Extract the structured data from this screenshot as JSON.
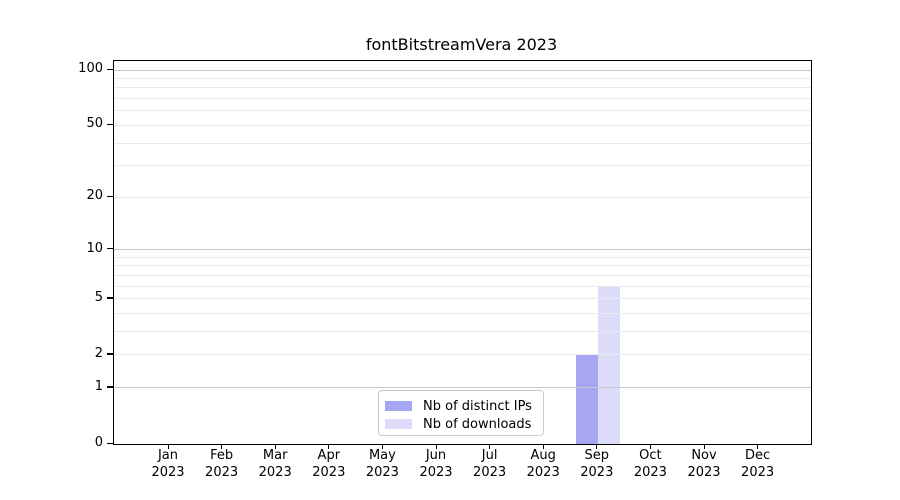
{
  "figure": {
    "title": "fontBitstreamVera 2023"
  },
  "chart_data": {
    "type": "bar",
    "title": "fontBitstreamVera 2023",
    "categories": [
      "Jan",
      "Feb",
      "Mar",
      "Apr",
      "May",
      "Jun",
      "Jul",
      "Aug",
      "Sep",
      "Oct",
      "Nov",
      "Dec"
    ],
    "category_sublabel": "2023",
    "series": [
      {
        "name": "Nb of distinct IPs",
        "color": "#a6a6f2",
        "values": [
          0,
          0,
          0,
          0,
          0,
          0,
          0,
          0,
          2,
          0,
          0,
          0
        ]
      },
      {
        "name": "Nb of downloads",
        "color": "#dcdcf8",
        "values": [
          0,
          0,
          0,
          0,
          0,
          0,
          0,
          0,
          6,
          0,
          0,
          0
        ]
      }
    ],
    "xlabel": "",
    "ylabel": "",
    "yscale": "log1p",
    "ylim": [
      0,
      112
    ],
    "ytick_labels": [
      0,
      1,
      2,
      5,
      10,
      20,
      50,
      100
    ],
    "gridlines": {
      "major": [
        1,
        10,
        100
      ],
      "minor": [
        2,
        3,
        4,
        5,
        6,
        7,
        8,
        9,
        20,
        30,
        40,
        50,
        60,
        70,
        80,
        90
      ],
      "major_color": "#c9c9c9",
      "minor_color": "#eaeaea"
    },
    "legend": {
      "entries": [
        "Nb of distinct IPs",
        "Nb of downloads"
      ],
      "location": "lower center"
    }
  }
}
